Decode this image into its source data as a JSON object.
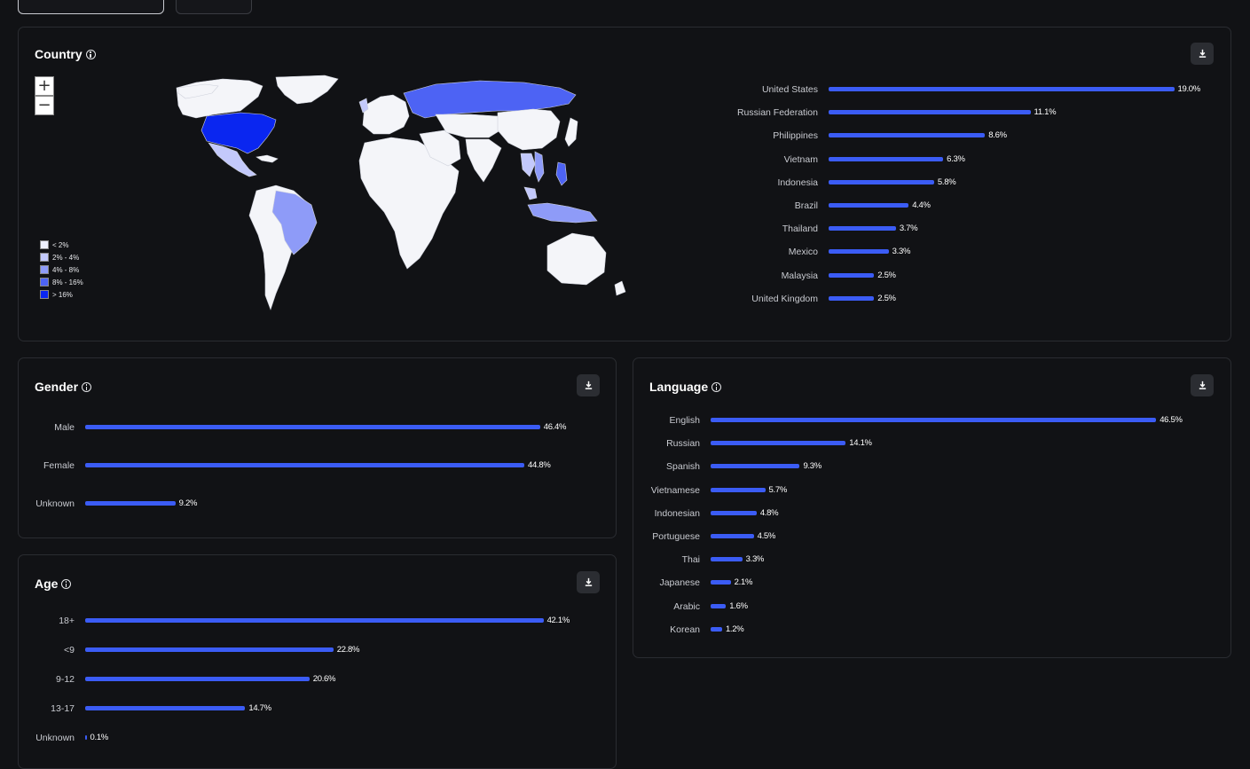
{
  "colors": {
    "bar": "#3b5cf5",
    "map_ramp": [
      "#eef0fd",
      "#c3c9fb",
      "#8e9bf8",
      "#4d63f4",
      "#0a26f0"
    ],
    "land_default": "#f4f5f9"
  },
  "country": {
    "title": "Country",
    "zoom_in": "+",
    "zoom_out": "−",
    "legend": [
      "< 2%",
      "2% - 4%",
      "4% - 8%",
      "8% - 16%",
      "> 16%"
    ],
    "bars": [
      {
        "label": "United States",
        "value": 19.0,
        "display": "19.0%"
      },
      {
        "label": "Russian Federation",
        "value": 11.1,
        "display": "11.1%"
      },
      {
        "label": "Philippines",
        "value": 8.6,
        "display": "8.6%"
      },
      {
        "label": "Vietnam",
        "value": 6.3,
        "display": "6.3%"
      },
      {
        "label": "Indonesia",
        "value": 5.8,
        "display": "5.8%"
      },
      {
        "label": "Brazil",
        "value": 4.4,
        "display": "4.4%"
      },
      {
        "label": "Thailand",
        "value": 3.7,
        "display": "3.7%"
      },
      {
        "label": "Mexico",
        "value": 3.3,
        "display": "3.3%"
      },
      {
        "label": "Malaysia",
        "value": 2.5,
        "display": "2.5%"
      },
      {
        "label": "United Kingdom",
        "value": 2.5,
        "display": "2.5%"
      }
    ]
  },
  "gender": {
    "title": "Gender",
    "bars": [
      {
        "label": "Male",
        "value": 46.4,
        "display": "46.4%"
      },
      {
        "label": "Female",
        "value": 44.8,
        "display": "44.8%"
      },
      {
        "label": "Unknown",
        "value": 9.2,
        "display": "9.2%"
      }
    ]
  },
  "age": {
    "title": "Age",
    "bars": [
      {
        "label": "18+",
        "value": 42.1,
        "display": "42.1%"
      },
      {
        "label": "<9",
        "value": 22.8,
        "display": "22.8%"
      },
      {
        "label": "9-12",
        "value": 20.6,
        "display": "20.6%"
      },
      {
        "label": "13-17",
        "value": 14.7,
        "display": "14.7%"
      },
      {
        "label": "Unknown",
        "value": 0.1,
        "display": "0.1%"
      }
    ]
  },
  "language": {
    "title": "Language",
    "bars": [
      {
        "label": "English",
        "value": 46.5,
        "display": "46.5%"
      },
      {
        "label": "Russian",
        "value": 14.1,
        "display": "14.1%"
      },
      {
        "label": "Spanish",
        "value": 9.3,
        "display": "9.3%"
      },
      {
        "label": "Vietnamese",
        "value": 5.7,
        "display": "5.7%"
      },
      {
        "label": "Indonesian",
        "value": 4.8,
        "display": "4.8%"
      },
      {
        "label": "Portuguese",
        "value": 4.5,
        "display": "4.5%"
      },
      {
        "label": "Thai",
        "value": 3.3,
        "display": "3.3%"
      },
      {
        "label": "Japanese",
        "value": 2.1,
        "display": "2.1%"
      },
      {
        "label": "Arabic",
        "value": 1.6,
        "display": "1.6%"
      },
      {
        "label": "Korean",
        "value": 1.2,
        "display": "1.2%"
      }
    ]
  },
  "chart_data": [
    {
      "type": "bar",
      "title": "Country",
      "categories": [
        "United States",
        "Russian Federation",
        "Philippines",
        "Vietnam",
        "Indonesia",
        "Brazil",
        "Thailand",
        "Mexico",
        "Malaysia",
        "United Kingdom"
      ],
      "values": [
        19.0,
        11.1,
        8.6,
        6.3,
        5.8,
        4.4,
        3.7,
        3.3,
        2.5,
        2.5
      ],
      "orientation": "horizontal",
      "unit": "%"
    },
    {
      "type": "bar",
      "title": "Gender",
      "categories": [
        "Male",
        "Female",
        "Unknown"
      ],
      "values": [
        46.4,
        44.8,
        9.2
      ],
      "orientation": "horizontal",
      "unit": "%"
    },
    {
      "type": "bar",
      "title": "Age",
      "categories": [
        "18+",
        "<9",
        "9-12",
        "13-17",
        "Unknown"
      ],
      "values": [
        42.1,
        22.8,
        20.6,
        14.7,
        0.1
      ],
      "orientation": "horizontal",
      "unit": "%"
    },
    {
      "type": "bar",
      "title": "Language",
      "categories": [
        "English",
        "Russian",
        "Spanish",
        "Vietnamese",
        "Indonesian",
        "Portuguese",
        "Thai",
        "Japanese",
        "Arabic",
        "Korean"
      ],
      "values": [
        46.5,
        14.1,
        9.3,
        5.7,
        4.8,
        4.5,
        3.3,
        2.1,
        1.6,
        1.2
      ],
      "orientation": "horizontal",
      "unit": "%"
    }
  ]
}
